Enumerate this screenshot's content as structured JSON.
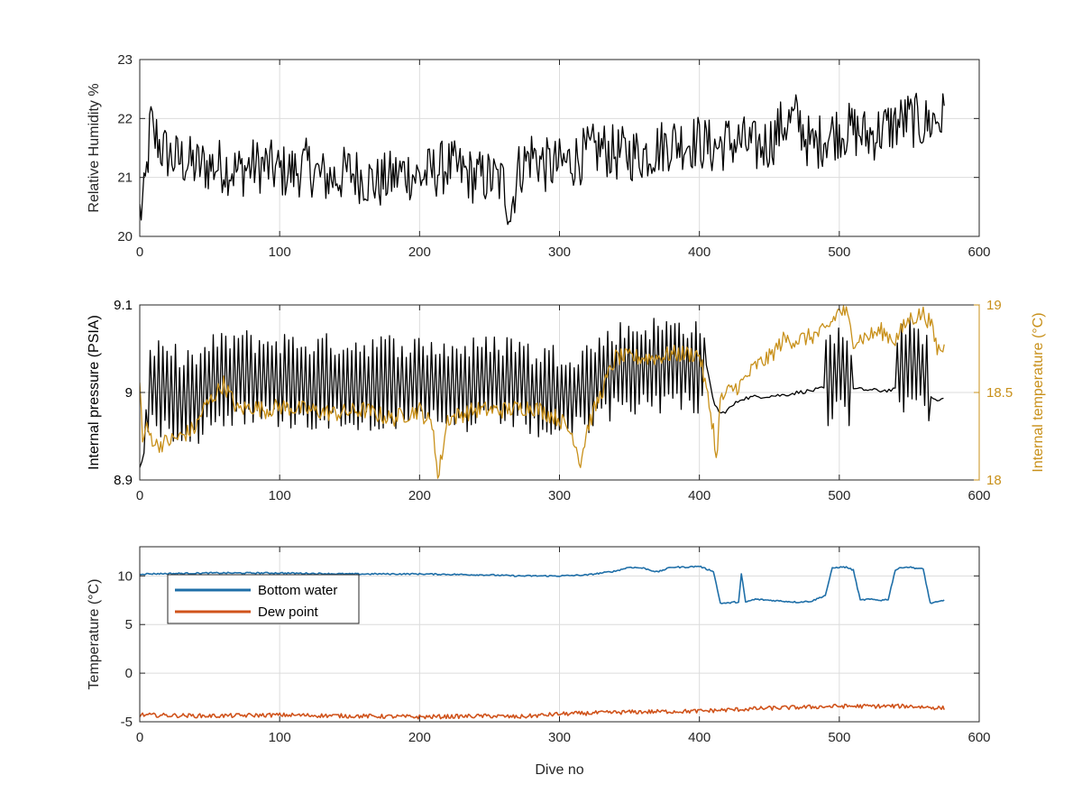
{
  "colors": {
    "black_series": "#000000",
    "gold_series": "#C8901A",
    "bottom_water": "#1F6FA8",
    "dew_point": "#D0531B",
    "axes": "#262626",
    "grid": "#DCDCDC"
  },
  "chart_data": [
    {
      "type": "line",
      "xlabel": "",
      "ylabel": "Relative Humidity %",
      "xlim": [
        0,
        600
      ],
      "ylim": [
        20,
        23
      ],
      "xticks": [
        0,
        100,
        200,
        300,
        400,
        500,
        600
      ],
      "yticks": [
        20,
        21,
        22,
        23
      ],
      "grid": true,
      "series": [
        {
          "axis": "left",
          "color": "#000000",
          "x": [
            0,
            3,
            5,
            8,
            10,
            12,
            15,
            20,
            25,
            30,
            40,
            50,
            60,
            70,
            80,
            90,
            100,
            110,
            120,
            130,
            140,
            150,
            160,
            170,
            180,
            190,
            200,
            210,
            220,
            230,
            240,
            250,
            260,
            265,
            270,
            280,
            290,
            300,
            310,
            320,
            330,
            340,
            350,
            360,
            370,
            380,
            390,
            400,
            410,
            420,
            430,
            440,
            450,
            460,
            470,
            480,
            490,
            500,
            510,
            520,
            530,
            540,
            550,
            560,
            570,
            575
          ],
          "y": [
            20.4,
            20.6,
            21.1,
            22.0,
            21.6,
            21.7,
            21.5,
            21.4,
            21.3,
            21.3,
            21.2,
            21.2,
            21.2,
            21.1,
            21.2,
            21.2,
            21.1,
            21.1,
            21.2,
            21.0,
            21.0,
            21.1,
            21.0,
            20.9,
            21.0,
            21.1,
            21.0,
            21.1,
            21.2,
            21.1,
            21.0,
            21.0,
            20.9,
            20.4,
            21.1,
            21.4,
            21.2,
            21.2,
            21.3,
            21.4,
            21.5,
            21.4,
            21.4,
            21.4,
            21.5,
            21.6,
            21.6,
            21.6,
            21.5,
            21.6,
            21.6,
            21.5,
            21.6,
            21.9,
            22.0,
            21.5,
            21.7,
            21.8,
            21.8,
            21.7,
            21.8,
            21.9,
            22.0,
            21.9,
            22.0,
            22.0
          ]
        }
      ]
    },
    {
      "type": "line",
      "xlabel": "",
      "ylabel": "Internal pressure (PSIA)",
      "y2label": "Internal temperature (°C)",
      "xlim": [
        0,
        600
      ],
      "ylim": [
        8.9,
        9.1
      ],
      "y2lim": [
        18,
        19
      ],
      "xticks": [
        0,
        100,
        200,
        300,
        400,
        500,
        600
      ],
      "yticks": [
        8.9,
        9,
        9.1
      ],
      "y2ticks": [
        18,
        18.5,
        19
      ],
      "grid": true,
      "series": [
        {
          "axis": "left",
          "color": "#000000",
          "x": [
            0,
            3,
            5,
            10,
            20,
            30,
            40,
            45,
            50,
            60,
            70,
            80,
            90,
            100,
            120,
            140,
            160,
            180,
            200,
            220,
            240,
            260,
            270,
            280,
            290,
            300,
            310,
            320,
            330,
            340,
            350,
            360,
            370,
            380,
            390,
            400,
            405,
            410,
            415,
            420,
            430,
            440,
            450,
            460,
            470,
            480,
            490,
            495,
            500,
            505,
            510,
            520,
            530,
            540,
            545,
            550,
            560,
            565,
            570,
            575
          ],
          "y": [
            8.915,
            8.93,
            8.995,
            9.005,
            9.0,
            9.0,
            8.995,
            9.0,
            9.01,
            9.015,
            9.02,
            9.015,
            9.015,
            9.015,
            9.012,
            9.012,
            9.012,
            9.012,
            9.01,
            9.008,
            9.008,
            9.012,
            9.015,
            9.0,
            9.002,
            9.0,
            9.0,
            9.005,
            9.015,
            9.025,
            9.03,
            9.03,
            9.032,
            9.032,
            9.033,
            9.03,
            9.03,
            8.99,
            8.975,
            8.98,
            8.993,
            8.995,
            8.996,
            8.997,
            9.0,
            9.002,
            9.005,
            9.02,
            9.04,
            9.025,
            9.004,
            9.003,
            9.002,
            9.003,
            9.03,
            9.04,
            9.025,
            8.995,
            8.99,
            8.993
          ]
        },
        {
          "axis": "right",
          "color": "#C8901A",
          "x": [
            0,
            2,
            4,
            8,
            12,
            20,
            30,
            40,
            45,
            50,
            60,
            70,
            80,
            90,
            100,
            120,
            140,
            160,
            180,
            200,
            210,
            213,
            220,
            240,
            260,
            280,
            300,
            310,
            315,
            320,
            330,
            340,
            350,
            360,
            370,
            380,
            390,
            400,
            410,
            412,
            415,
            420,
            430,
            440,
            450,
            460,
            470,
            480,
            490,
            500,
            505,
            510,
            520,
            530,
            540,
            550,
            560,
            565,
            570,
            575
          ],
          "y": [
            18.6,
            18.2,
            18.3,
            18.25,
            18.2,
            18.22,
            18.25,
            18.3,
            18.4,
            18.45,
            18.55,
            18.4,
            18.42,
            18.4,
            18.42,
            18.4,
            18.38,
            18.4,
            18.35,
            18.4,
            18.3,
            18.0,
            18.35,
            18.4,
            18.4,
            18.42,
            18.35,
            18.25,
            18.1,
            18.3,
            18.5,
            18.7,
            18.7,
            18.7,
            18.7,
            18.72,
            18.72,
            18.72,
            18.3,
            18.1,
            18.45,
            18.5,
            18.55,
            18.65,
            18.7,
            18.8,
            18.8,
            18.82,
            18.85,
            18.97,
            18.95,
            18.8,
            18.82,
            18.85,
            18.8,
            18.92,
            18.95,
            18.9,
            18.75,
            18.75
          ]
        }
      ]
    },
    {
      "type": "line",
      "xlabel": "Dive no",
      "ylabel": "Temperature (°C)",
      "xlim": [
        0,
        600
      ],
      "ylim": [
        -5,
        13
      ],
      "xticks": [
        0,
        100,
        200,
        300,
        400,
        500,
        600
      ],
      "yticks": [
        -5,
        0,
        5,
        10
      ],
      "grid": true,
      "legend": "top-left",
      "series": [
        {
          "name": "Bottom water",
          "color": "#1F6FA8",
          "x": [
            0,
            50,
            100,
            150,
            200,
            250,
            270,
            300,
            320,
            340,
            350,
            360,
            370,
            380,
            390,
            400,
            405,
            410,
            415,
            420,
            425,
            428,
            430,
            433,
            435,
            440,
            450,
            460,
            470,
            480,
            490,
            495,
            500,
            505,
            510,
            515,
            520,
            530,
            535,
            540,
            545,
            550,
            560,
            565,
            570,
            575
          ],
          "y": [
            10.2,
            10.3,
            10.3,
            10.2,
            10.2,
            10.1,
            10.0,
            10.0,
            10.1,
            10.5,
            10.9,
            10.8,
            10.4,
            10.9,
            10.9,
            11.0,
            10.7,
            10.5,
            7.2,
            7.2,
            7.3,
            7.3,
            10.2,
            7.3,
            7.4,
            7.6,
            7.5,
            7.4,
            7.3,
            7.4,
            8.0,
            10.8,
            10.9,
            10.9,
            10.6,
            7.5,
            7.6,
            7.5,
            7.6,
            10.6,
            10.9,
            10.9,
            10.7,
            7.2,
            7.3,
            7.5
          ]
        },
        {
          "name": "Dew point",
          "color": "#D0531B",
          "x": [
            0,
            50,
            100,
            150,
            200,
            250,
            270,
            300,
            350,
            400,
            450,
            500,
            550,
            575
          ],
          "y": [
            -4.3,
            -4.4,
            -4.3,
            -4.4,
            -4.5,
            -4.4,
            -4.5,
            -4.2,
            -4.0,
            -3.9,
            -3.6,
            -3.4,
            -3.4,
            -3.6
          ]
        }
      ]
    }
  ]
}
